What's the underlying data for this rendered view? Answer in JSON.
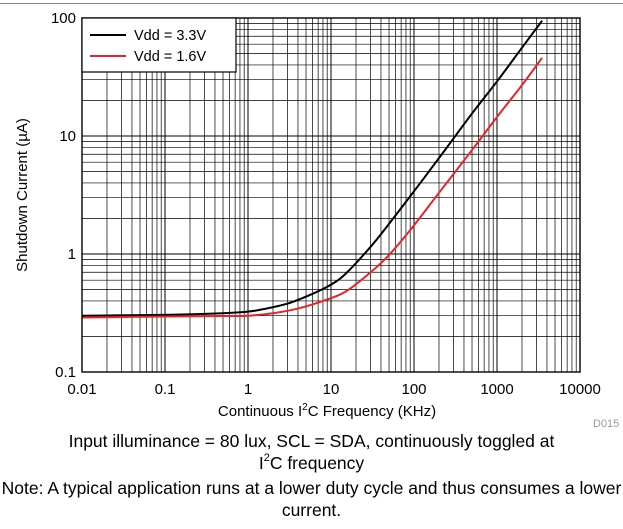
{
  "chart_data": {
    "type": "line",
    "x_scale": "log",
    "y_scale": "log",
    "xlim": [
      0.01,
      10000
    ],
    "ylim": [
      0.1,
      100
    ],
    "x_ticks": [
      0.01,
      0.1,
      1,
      10,
      100,
      1000,
      10000
    ],
    "y_ticks": [
      0.1,
      1,
      10,
      100
    ],
    "x_tick_labels": [
      "0.01",
      "0.1",
      "1",
      "10",
      "100",
      "1000",
      "10000"
    ],
    "y_tick_labels": [
      "0.1",
      "1",
      "10",
      "100"
    ],
    "xlabel": {
      "pre": "Continuous I",
      "sup": "2",
      "post": "C Frequency (KHz)"
    },
    "ylabel": "Shutdown Current (µA)",
    "grid": true,
    "legend_placement": "top-left",
    "series": [
      {
        "name": "Vdd = 3.3V",
        "color": "#000000",
        "x": [
          0.01,
          0.1,
          0.5,
          1,
          1.5,
          3,
          6,
          10,
          15,
          30,
          50,
          100,
          200,
          500,
          1000,
          2000,
          3500
        ],
        "y": [
          0.3,
          0.305,
          0.315,
          0.325,
          0.34,
          0.38,
          0.46,
          0.55,
          0.68,
          1.15,
          1.8,
          3.4,
          6.5,
          15.5,
          29,
          56,
          95
        ]
      },
      {
        "name": "Vdd = 1.6V",
        "color": "#e8232a",
        "x": [
          0.01,
          0.1,
          0.5,
          1,
          2,
          4,
          8,
          15,
          30,
          50,
          100,
          200,
          500,
          1000,
          2000,
          3500
        ],
        "y": [
          0.29,
          0.295,
          0.298,
          0.3,
          0.315,
          0.345,
          0.4,
          0.48,
          0.7,
          0.98,
          1.75,
          3.3,
          7.6,
          14.5,
          27,
          46
        ]
      }
    ]
  },
  "watermark": "D015",
  "caption": {
    "line1_pre": "Input illuminance = 80 lux, SCL = SDA, continuously toggled at",
    "line1_sup_base": "I",
    "line1_sup": "2",
    "line1_post": "C frequency",
    "note": "Note: A typical application runs at a lower duty cycle and thus consumes a lower current."
  }
}
